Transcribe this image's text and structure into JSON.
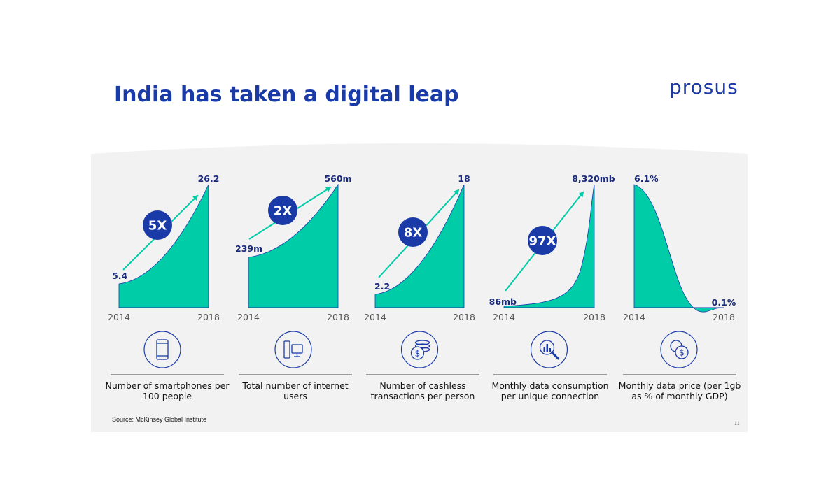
{
  "slide": {
    "title": "India has taken a digital leap",
    "logo_text": "prosus",
    "source": "Source: McKinsey Global Institute",
    "page_number": "11"
  },
  "colors": {
    "accent": "#00cca8",
    "brand": "#1a3aa8",
    "badge": "#1a3aa8",
    "panel": "#f2f2f2"
  },
  "chart_data": [
    {
      "type": "area",
      "x": [
        "2014",
        "2018"
      ],
      "start_label": "5.4",
      "end_label": "26.2",
      "values": [
        5.4,
        26.2
      ],
      "multiplier": "5X",
      "trend": "increase",
      "description": "Number of smartphones per 100 people",
      "icon": "smartphone-icon"
    },
    {
      "type": "area",
      "x": [
        "2014",
        "2018"
      ],
      "start_label": "239m",
      "end_label": "560m",
      "values": [
        239,
        560
      ],
      "multiplier": "2X",
      "trend": "increase",
      "description": "Total number of internet users",
      "icon": "computer-icon"
    },
    {
      "type": "area",
      "x": [
        "2014",
        "2018"
      ],
      "start_label": "2.2",
      "end_label": "18",
      "values": [
        2.2,
        18
      ],
      "multiplier": "8X",
      "trend": "increase",
      "description": "Number of cashless transactions per person",
      "icon": "coins-icon"
    },
    {
      "type": "area",
      "x": [
        "2014",
        "2018"
      ],
      "start_label": "86mb",
      "end_label": "8,320mb",
      "values": [
        86,
        8320
      ],
      "multiplier": "97X",
      "trend": "increase",
      "description": "Monthly data consumption per unique connection",
      "icon": "data-analysis-icon"
    },
    {
      "type": "area",
      "x": [
        "2014",
        "2018"
      ],
      "start_label": "6.1%",
      "end_label": "0.1%",
      "values": [
        6.1,
        0.1
      ],
      "multiplier": "",
      "trend": "decrease",
      "description": "Monthly data price (per 1gb as % of monthly GDP)",
      "icon": "currency-exchange-icon"
    }
  ]
}
